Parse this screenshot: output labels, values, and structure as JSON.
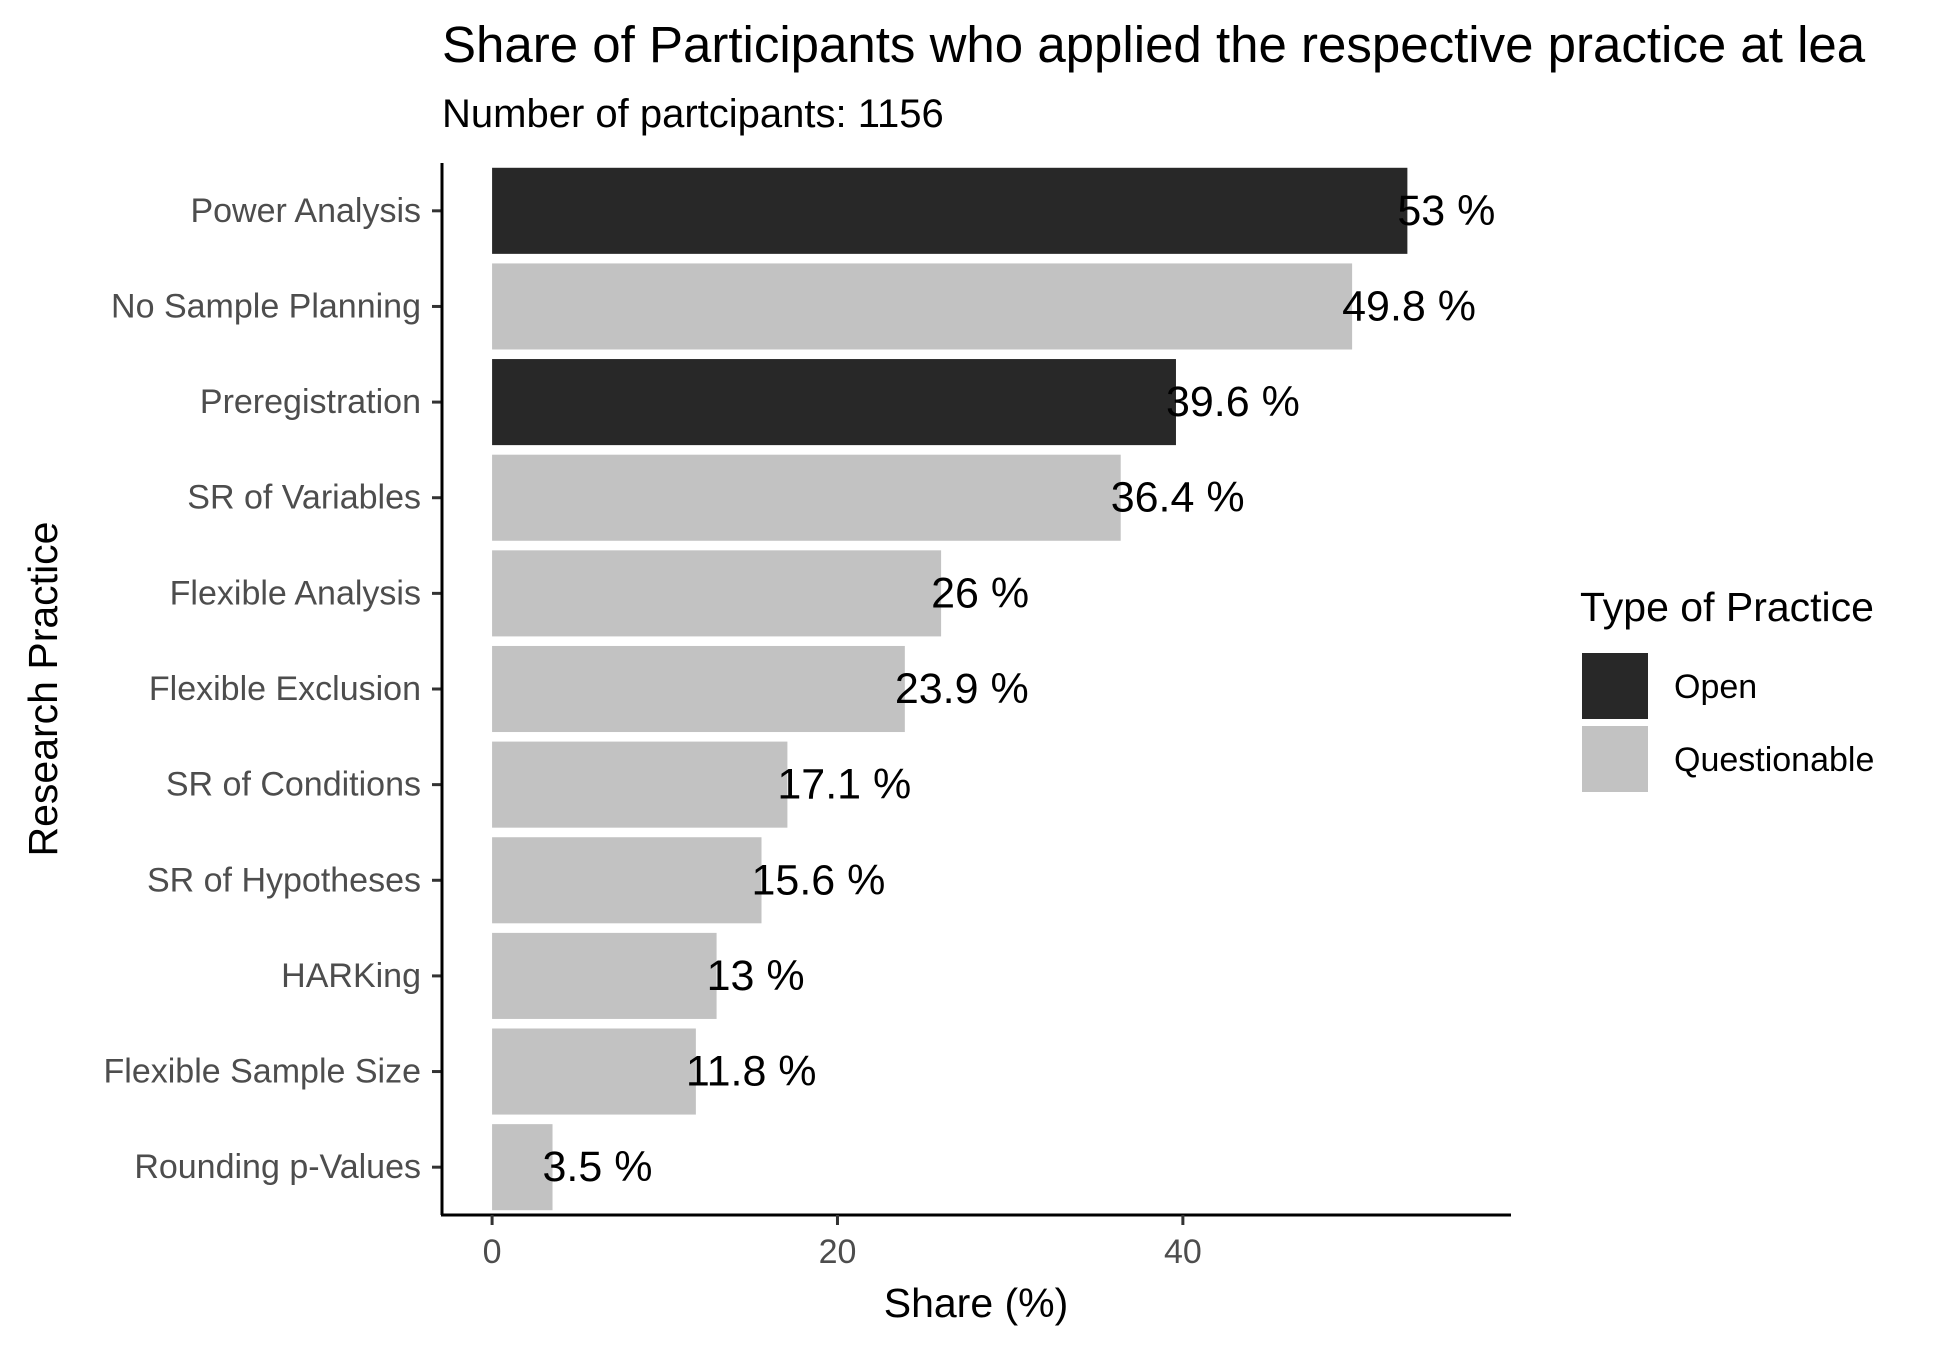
{
  "chart_data": {
    "type": "bar",
    "orientation": "horizontal",
    "title": "Share of Participants who applied the respective practice at lea",
    "subtitle": "Number of partcipants: 1156",
    "xlabel": "Share (%)",
    "ylabel": "Research Practice",
    "xlim": [
      -2.9,
      59
    ],
    "x_ticks": [
      0,
      20,
      40
    ],
    "grid": false,
    "legend": {
      "title": "Type of Practice",
      "position": "right",
      "entries": [
        {
          "name": "Open",
          "color": "#282828"
        },
        {
          "name": "Questionable",
          "color": "#c2c2c2"
        }
      ]
    },
    "categories": [
      "Power Analysis",
      "No Sample Planning",
      "Preregistration",
      "SR of Variables",
      "Flexible Analysis",
      "Flexible Exclusion",
      "SR of Conditions",
      "SR of Hypotheses",
      "HARKing",
      "Flexible Sample Size",
      "Rounding p-Values"
    ],
    "values": [
      53,
      49.8,
      39.6,
      36.4,
      26,
      23.9,
      17.1,
      15.6,
      13,
      11.8,
      3.5
    ],
    "value_labels": [
      "53 %",
      "49.8 %",
      "39.6 %",
      "36.4 %",
      "26 %",
      "23.9 %",
      "17.1 %",
      "15.6 %",
      "13 %",
      "11.8 %",
      "3.5 %"
    ],
    "types": [
      "Open",
      "Questionable",
      "Open",
      "Questionable",
      "Questionable",
      "Questionable",
      "Questionable",
      "Questionable",
      "Questionable",
      "Questionable",
      "Questionable"
    ]
  }
}
